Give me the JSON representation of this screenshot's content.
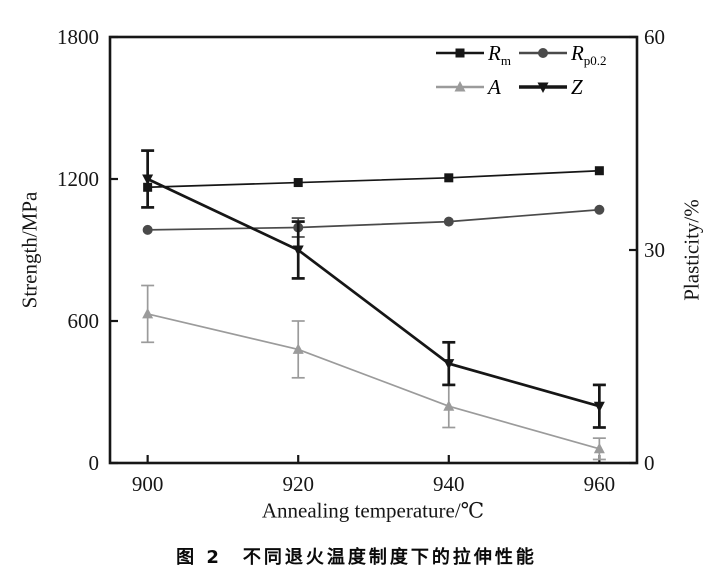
{
  "figure": {
    "caption": "图 2　不同退火温度制度下的拉伸性能"
  },
  "chart_data": {
    "type": "line",
    "x": [
      900,
      920,
      940,
      960
    ],
    "xlabel": "Annealing temperature/℃",
    "ylabel_left": "Strength/MPa",
    "ylabel_right": "Plasticity/%",
    "xlim": [
      895,
      965
    ],
    "ylim_left": [
      0,
      1800
    ],
    "ylim_right": [
      0,
      60
    ],
    "xticks": [
      "900",
      "920",
      "940",
      "960"
    ],
    "yticks_left": [
      "0",
      "600",
      "1200",
      "1800"
    ],
    "yticks_right": [
      "0",
      "30",
      "60"
    ],
    "grid": false,
    "legend_position": "top-right-inside",
    "frame_color": "#161616",
    "series": [
      {
        "name": "Rm",
        "label_main": "R",
        "label_sub": "m",
        "axis": "left",
        "values": [
          1165,
          1185,
          1205,
          1235
        ],
        "errors": [
          0,
          0,
          0,
          0
        ],
        "color": "#161616",
        "marker": "square",
        "line_width": 1.7
      },
      {
        "name": "Rp0.2",
        "label_main": "R",
        "label_sub": "p0.2",
        "axis": "left",
        "values": [
          985,
          995,
          1020,
          1070
        ],
        "errors": [
          0,
          40,
          0,
          0
        ],
        "color": "#4a4a4a",
        "marker": "circle",
        "line_width": 1.7
      },
      {
        "name": "A",
        "label_main": "A",
        "label_sub": "",
        "axis": "right",
        "values": [
          21,
          16,
          8,
          2
        ],
        "errors": [
          4,
          4,
          3,
          1.5
        ],
        "color": "#9b9b9b",
        "marker": "triangle-up",
        "line_width": 1.7
      },
      {
        "name": "Z",
        "label_main": "Z",
        "label_sub": "",
        "axis": "right",
        "values": [
          40,
          30,
          14,
          8
        ],
        "errors": [
          4,
          4,
          3,
          3
        ],
        "color": "#161616",
        "marker": "triangle-down",
        "line_width": 2.7
      }
    ]
  }
}
